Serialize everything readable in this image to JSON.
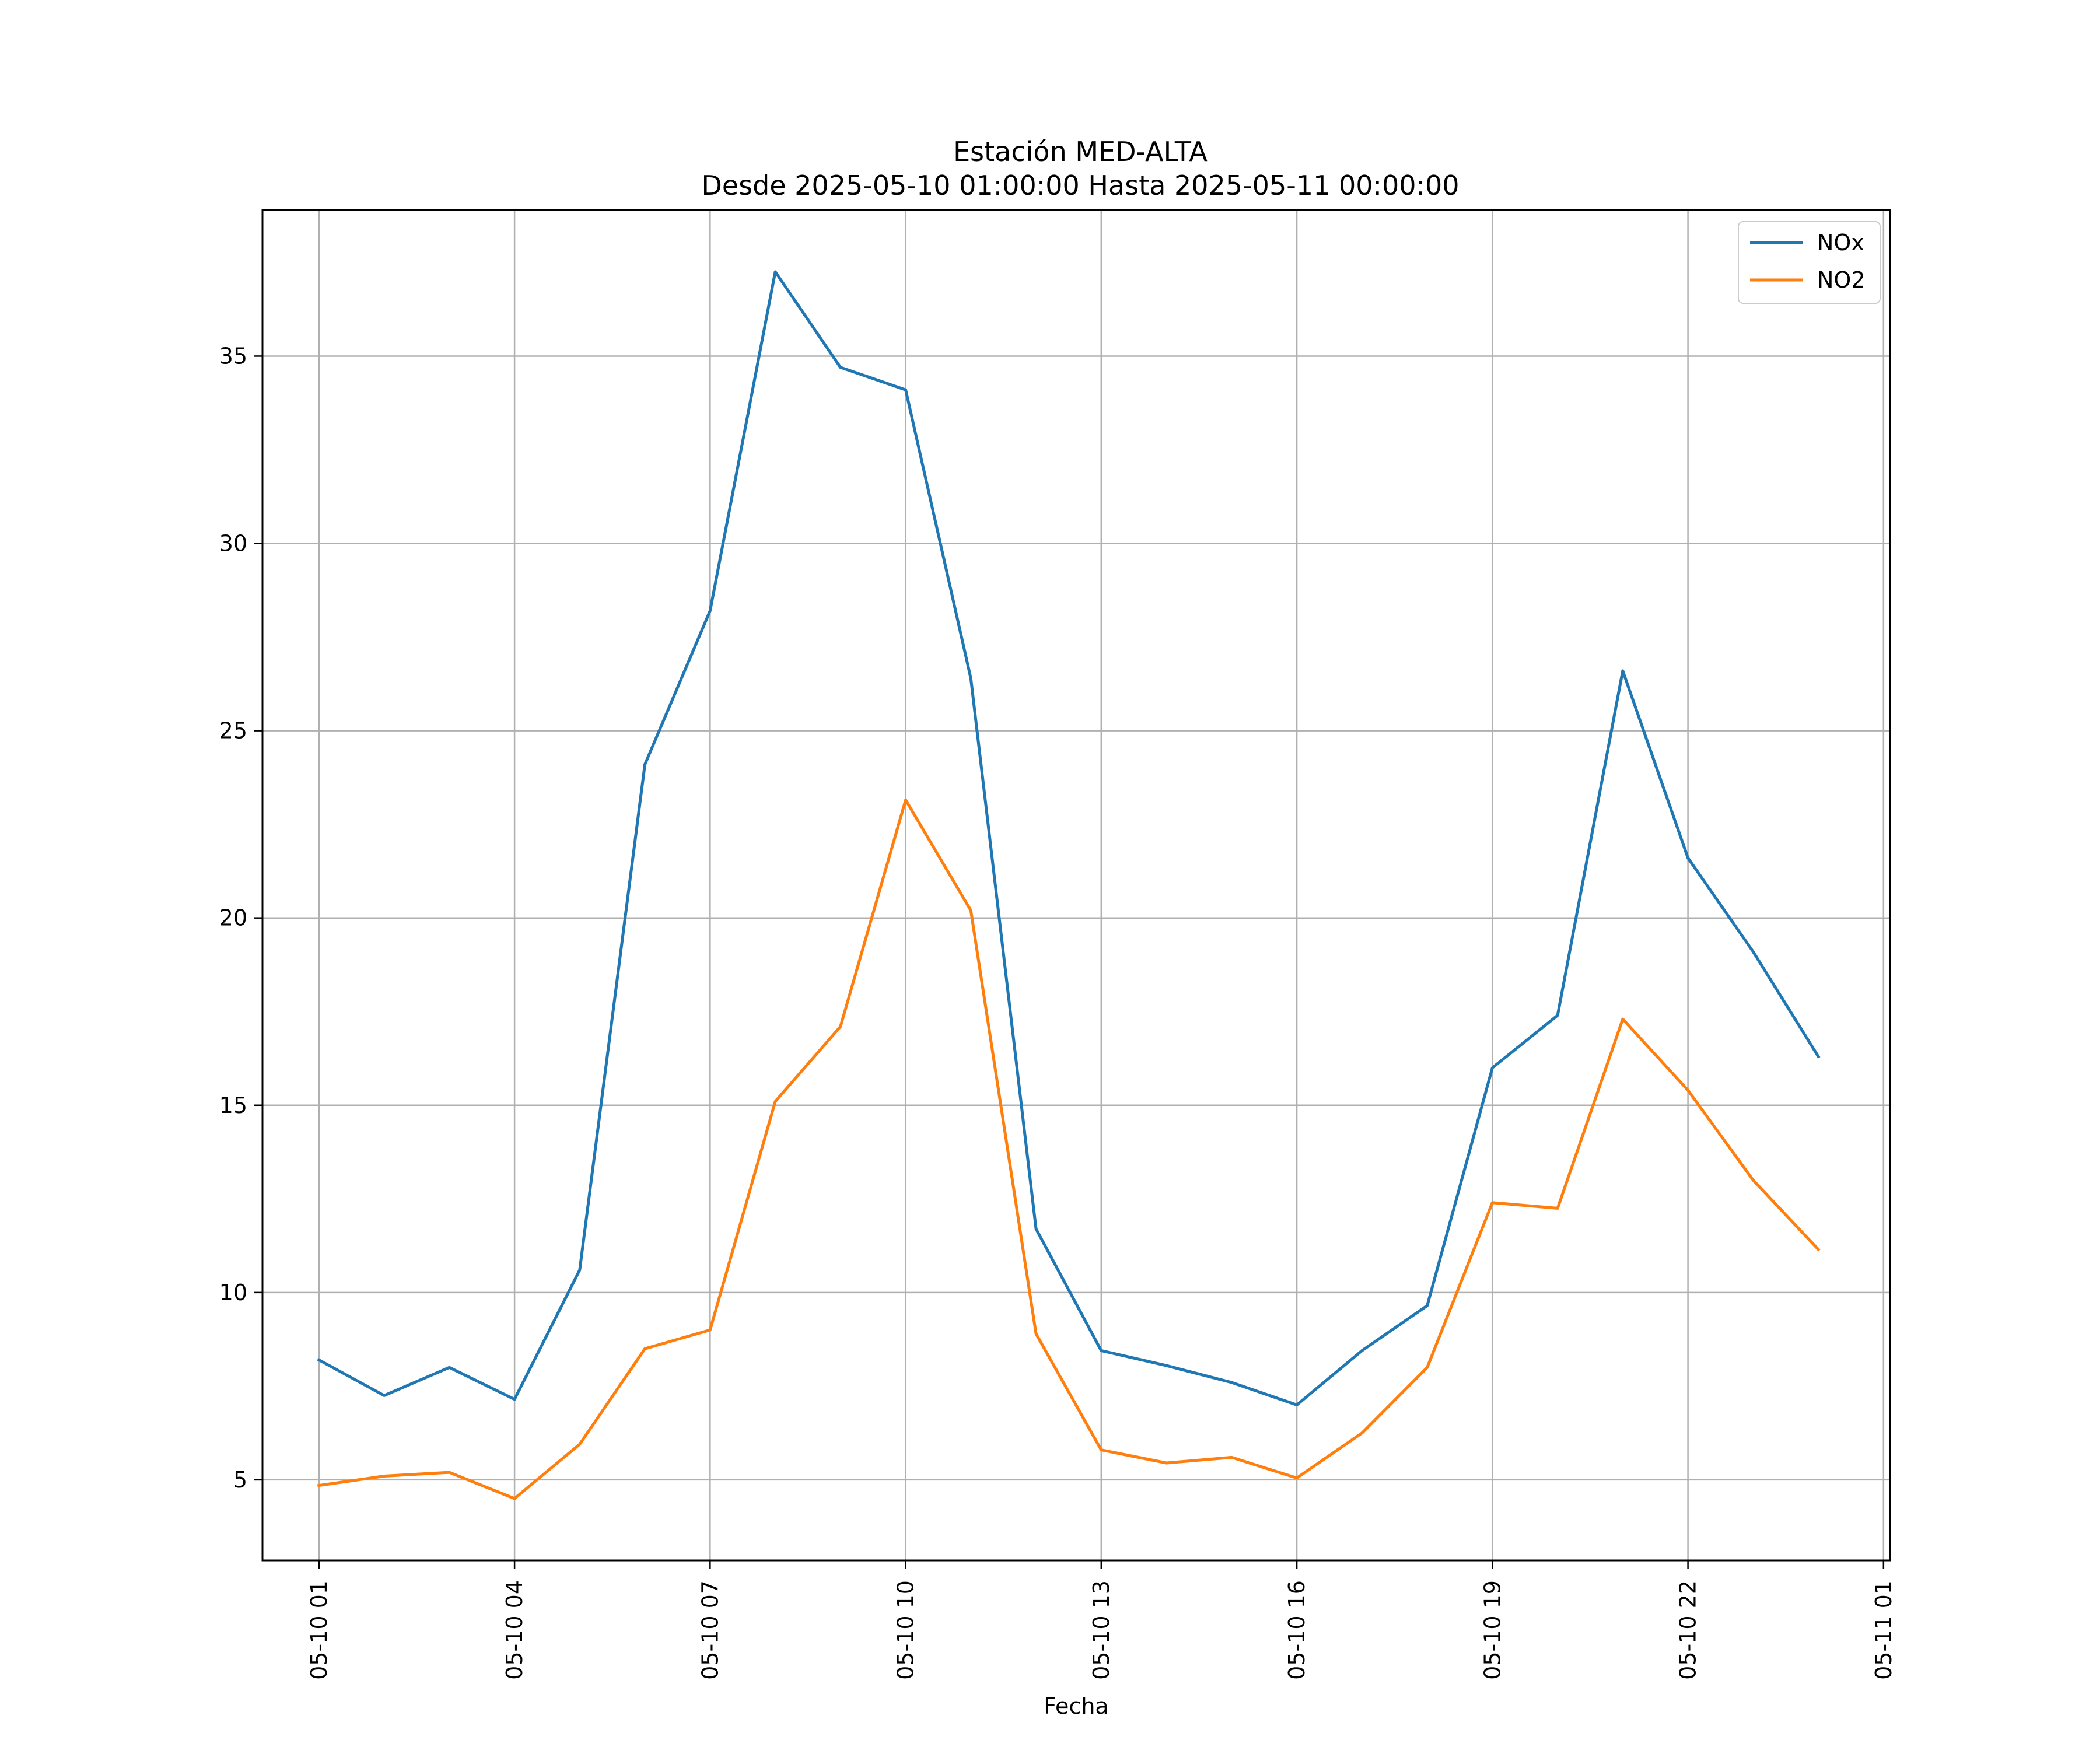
{
  "chart_data": {
    "type": "line",
    "title": "Estación MED-ALTA",
    "subtitle": "Desde 2025-05-10 01:00:00 Hasta 2025-05-11 00:00:00",
    "xlabel": "Fecha",
    "ylabel": "",
    "x": [
      "2025-05-10 01:00",
      "2025-05-10 02:00",
      "2025-05-10 03:00",
      "2025-05-10 04:00",
      "2025-05-10 05:00",
      "2025-05-10 06:00",
      "2025-05-10 07:00",
      "2025-05-10 08:00",
      "2025-05-10 09:00",
      "2025-05-10 10:00",
      "2025-05-10 11:00",
      "2025-05-10 12:00",
      "2025-05-10 13:00",
      "2025-05-10 14:00",
      "2025-05-10 15:00",
      "2025-05-10 16:00",
      "2025-05-10 17:00",
      "2025-05-10 18:00",
      "2025-05-10 19:00",
      "2025-05-10 20:00",
      "2025-05-10 21:00",
      "2025-05-10 22:00",
      "2025-05-10 23:00",
      "2025-05-11 00:00"
    ],
    "x_ticks": [
      "05-10 01",
      "05-10 04",
      "05-10 07",
      "05-10 10",
      "05-10 13",
      "05-10 16",
      "05-10 19",
      "05-10 22",
      "05-11 01"
    ],
    "x_tick_values": [
      "2025-05-10 01:00",
      "2025-05-10 04:00",
      "2025-05-10 07:00",
      "2025-05-10 10:00",
      "2025-05-10 13:00",
      "2025-05-10 16:00",
      "2025-05-10 19:00",
      "2025-05-10 22:00",
      "2025-05-11 01:00"
    ],
    "xlim": [
      "2025-05-10 00:08",
      "2025-05-11 01:06"
    ],
    "y_ticks": [
      5,
      10,
      15,
      20,
      25,
      30,
      35
    ],
    "ylim": [
      2.85,
      38.9
    ],
    "grid": true,
    "legend_position": "top-right",
    "series": [
      {
        "name": "NOx",
        "color": "#1f77b4",
        "values": [
          8.2,
          7.25,
          8.0,
          7.15,
          10.6,
          24.1,
          28.2,
          37.25,
          34.7,
          34.1,
          26.4,
          11.7,
          8.45,
          8.05,
          7.6,
          7.0,
          8.45,
          9.65,
          16.0,
          17.4,
          26.6,
          21.6,
          19.1,
          16.3
        ]
      },
      {
        "name": "NO2",
        "color": "#ff7f0e",
        "values": [
          4.85,
          5.1,
          5.2,
          4.5,
          5.95,
          8.5,
          9.0,
          15.1,
          17.1,
          23.15,
          20.2,
          8.9,
          5.8,
          5.45,
          5.6,
          5.05,
          6.25,
          8.0,
          12.4,
          12.25,
          17.3,
          15.4,
          13.0,
          11.15
        ]
      }
    ]
  }
}
